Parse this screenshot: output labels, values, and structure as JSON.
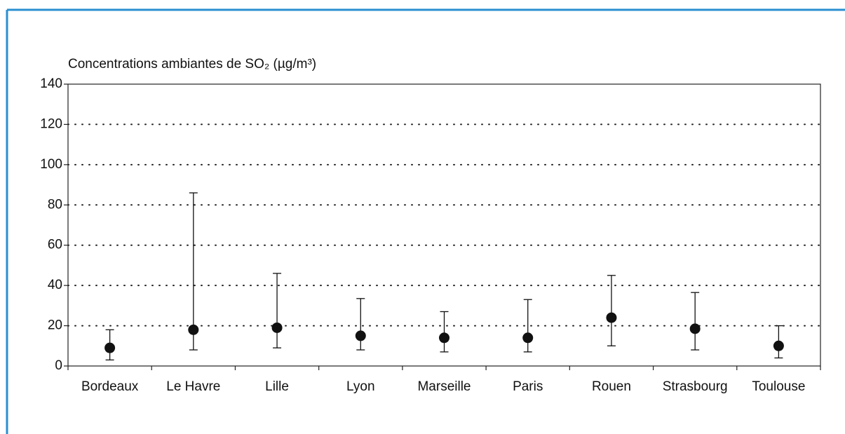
{
  "chart_data": {
    "type": "dot-range",
    "title": "Concentrations ambiantes de SO₂ (µg/m³)",
    "categories": [
      "Bordeaux",
      "Le Havre",
      "Lille",
      "Lyon",
      "Marseille",
      "Paris",
      "Rouen",
      "Strasbourg",
      "Toulouse"
    ],
    "values": [
      9,
      18,
      19,
      15,
      14,
      14,
      24,
      18.5,
      10
    ],
    "low": [
      3,
      8,
      9,
      8,
      7,
      7,
      10,
      8,
      4
    ],
    "high": [
      18,
      86,
      46,
      33.5,
      27,
      33,
      45,
      36.5,
      20
    ],
    "color": "#111111",
    "ylim": [
      0,
      140
    ],
    "yticks": [
      0,
      20,
      40,
      60,
      80,
      100,
      120,
      140
    ],
    "grid": true
  }
}
